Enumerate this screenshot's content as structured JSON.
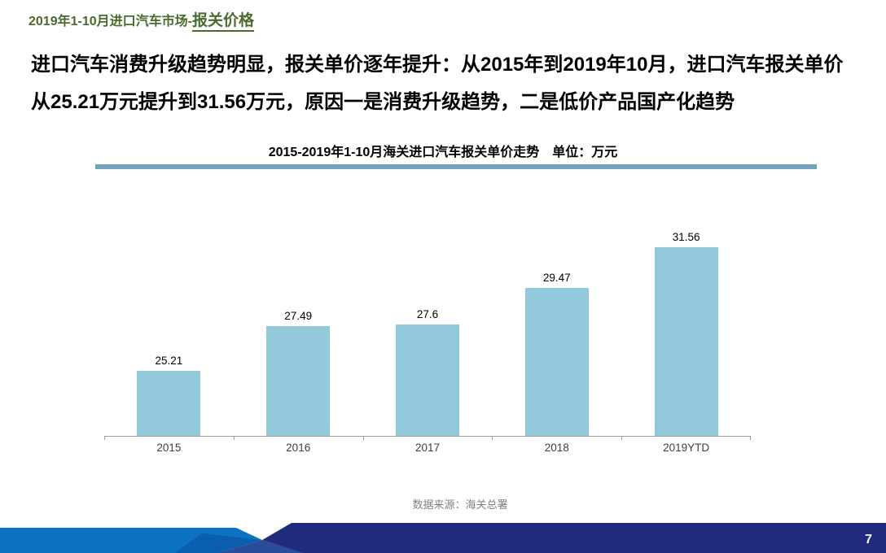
{
  "slide": {
    "header": {
      "prefix": "2019年1-10月进口汽车市场-",
      "emphasis": "报关价格"
    },
    "body": {
      "line1": "进口汽车消费升级趋势明显，报关单价逐年提升：从2015年到2019年10月，进口汽车报关单价",
      "line2": "从25.21万元提升到31.56万元，原因一是消费升级趋势，二是低价产品国产化趋势"
    },
    "source": "数据来源：海关总署",
    "page_number": "7"
  },
  "chart_data": {
    "type": "bar",
    "title": "2015-2019年1-10月海关进口汽车报关单价走势　单位：万元",
    "categories": [
      "2015",
      "2016",
      "2017",
      "2018",
      "2019YTD"
    ],
    "values": [
      25.21,
      27.49,
      27.6,
      29.47,
      31.56
    ],
    "unit": "万元",
    "xlabel": "",
    "ylabel": "",
    "ylim": [
      21.87,
      32.52
    ],
    "grid": false,
    "legend": "none",
    "data_labels": true
  },
  "colors": {
    "header-green": "#4A6B2E",
    "rule-teal": "#74A3BE",
    "bar-color": "#92C9DB",
    "axis-color": "#9D9D9D",
    "label-gray": "#3F3F3F",
    "source-gray": "#7F7F7F",
    "footer-bright-blue": "#0B72C4",
    "footer-navy": "#212B7D",
    "footer-mid-blue": "#2B4C9B",
    "page-number-white": "#FFFFFF"
  }
}
